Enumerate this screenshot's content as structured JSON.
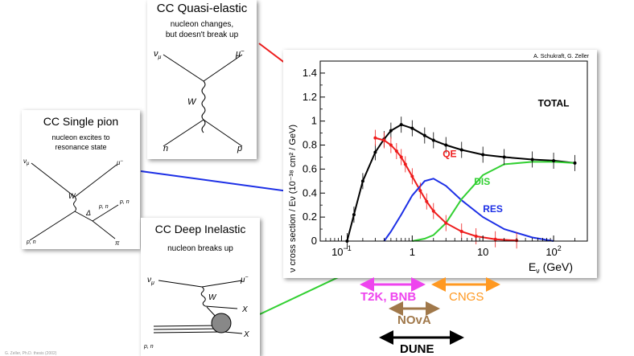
{
  "cards": {
    "qe": {
      "title": "CC Quasi-elastic",
      "subtitle": "nucleon changes,\nbut doesn't break up",
      "labels": {
        "nu_in": "ν",
        "nu_sub": "μ",
        "lep_out": "μ",
        "lep_sup": "−",
        "boson": "W",
        "n_in": "n",
        "p_out": "p"
      }
    },
    "res": {
      "title": "CC Single pion",
      "subtitle": "nucleon excites to\nresonance state",
      "labels": {
        "nu_in": "ν",
        "nu_sub": "μ",
        "lep_out": "μ",
        "lep_sup": "−",
        "boson": "W",
        "delta": "Δ",
        "pn1": "p, n",
        "pn2": "p, n",
        "pn3": "p, n",
        "pion": "π"
      }
    },
    "dis": {
      "title": "CC Deep Inelastic",
      "subtitle": "nucleon breaks up",
      "labels": {
        "nu_in": "ν",
        "nu_sub": "μ",
        "lep_out": "μ",
        "lep_sup": "−",
        "boson": "W",
        "x1": "X",
        "x2": "X",
        "pn": "p, n"
      }
    }
  },
  "chart_data": {
    "type": "line",
    "credit": "A. Schukraft, G. Zeller",
    "xlabel": "E",
    "xlabel_sub": "ν",
    "xlabel_unit": "(GeV)",
    "ylabel": "ν cross section / Eν (10⁻³⁸ cm² / GeV)",
    "x_scale": "log",
    "xlim": [
      0.05,
      300
    ],
    "ylim": [
      0,
      1.5
    ],
    "x_ticks": [
      {
        "v": 0.1,
        "base": "10",
        "exp": "−1"
      },
      {
        "v": 1,
        "base": "1",
        "exp": ""
      },
      {
        "v": 10,
        "base": "10",
        "exp": ""
      },
      {
        "v": 100,
        "base": "10",
        "exp": "2"
      }
    ],
    "y_ticks": [
      0,
      0.2,
      0.4,
      0.6,
      0.8,
      1,
      1.2,
      1.4
    ],
    "y_tick_labels": [
      "0",
      "0.2",
      "0.4",
      "0.6",
      "0.8",
      "1",
      "1.2",
      "1.4"
    ],
    "series": [
      {
        "name": "TOTAL",
        "color": "#000000",
        "x": [
          0.12,
          0.15,
          0.2,
          0.3,
          0.4,
          0.5,
          0.7,
          1.0,
          1.5,
          2,
          3,
          5,
          10,
          20,
          50,
          100,
          200
        ],
        "y": [
          0.0,
          0.22,
          0.5,
          0.74,
          0.85,
          0.92,
          0.97,
          0.94,
          0.88,
          0.84,
          0.8,
          0.76,
          0.72,
          0.7,
          0.68,
          0.67,
          0.65
        ]
      },
      {
        "name": "QE",
        "color": "#ee1c1c",
        "x": [
          0.3,
          0.4,
          0.5,
          0.6,
          0.7,
          0.8,
          1.0,
          1.3,
          1.6,
          2,
          3,
          5,
          8,
          15,
          30
        ],
        "y": [
          0.86,
          0.84,
          0.8,
          0.75,
          0.7,
          0.64,
          0.54,
          0.42,
          0.33,
          0.25,
          0.15,
          0.08,
          0.04,
          0.015,
          0.005
        ]
      },
      {
        "name": "RES",
        "color": "#1c2fe6",
        "x": [
          0.4,
          0.5,
          0.7,
          1.0,
          1.5,
          2,
          3,
          5,
          10,
          20,
          50,
          100
        ],
        "y": [
          0.0,
          0.08,
          0.22,
          0.38,
          0.5,
          0.52,
          0.46,
          0.34,
          0.2,
          0.1,
          0.03,
          0.0
        ]
      },
      {
        "name": "DIS",
        "color": "#32d032",
        "x": [
          1.0,
          1.5,
          2,
          3,
          5,
          10,
          20,
          50,
          100,
          200
        ],
        "y": [
          0.0,
          0.02,
          0.05,
          0.15,
          0.35,
          0.55,
          0.64,
          0.66,
          0.66,
          0.65
        ]
      }
    ],
    "series_labels": [
      {
        "name": "TOTAL",
        "x": 60,
        "y": 1.12,
        "color": "#000000"
      },
      {
        "name": "QE",
        "x": 2.7,
        "y": 0.7,
        "color": "#ee1c1c"
      },
      {
        "name": "DIS",
        "x": 7.5,
        "y": 0.47,
        "color": "#32d032"
      },
      {
        "name": "RES",
        "x": 10,
        "y": 0.24,
        "color": "#1c2fe6"
      }
    ]
  },
  "experiments": [
    {
      "name": "T2K, BNB",
      "color": "#ee44ee"
    },
    {
      "name": "CNGS",
      "color": "#ff9922"
    },
    {
      "name": "NOvA",
      "color": "#a0784a"
    },
    {
      "name": "DUNE",
      "color": "#000000"
    }
  ],
  "footnote": "G. Zeller, Ph.D. thesis (2002)"
}
